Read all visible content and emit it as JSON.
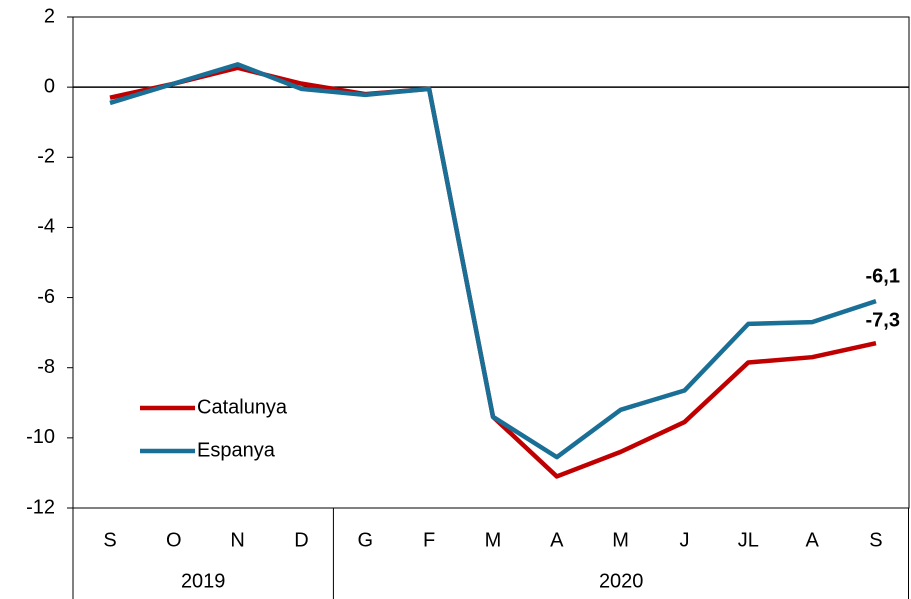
{
  "chart_data": {
    "type": "line",
    "categories": [
      "S",
      "O",
      "N",
      "D",
      "G",
      "F",
      "M",
      "A",
      "M",
      "J",
      "JL",
      "A",
      "S"
    ],
    "year_groups": [
      {
        "label": "2019",
        "start": 0,
        "end": 3
      },
      {
        "label": "2020",
        "start": 4,
        "end": 12
      }
    ],
    "series": [
      {
        "name": "Catalunya",
        "color": "#c00000",
        "values": [
          -0.3,
          0.1,
          0.55,
          0.1,
          -0.2,
          -0.05,
          -9.4,
          -11.1,
          -10.4,
          -9.55,
          -7.85,
          -7.7,
          -7.3
        ],
        "value_labels": [
          null,
          null,
          null,
          null,
          null,
          null,
          null,
          null,
          null,
          null,
          null,
          null,
          "-7,3"
        ]
      },
      {
        "name": "Espanya",
        "color": "#1a6f96",
        "values": [
          -0.45,
          0.1,
          0.65,
          -0.05,
          -0.22,
          -0.05,
          -9.4,
          -10.55,
          -9.2,
          -8.65,
          -6.75,
          -6.7,
          -6.1
        ],
        "value_labels": [
          null,
          null,
          null,
          null,
          null,
          null,
          null,
          null,
          null,
          null,
          null,
          null,
          "-6,1"
        ]
      }
    ],
    "ylim": [
      -12,
      2
    ],
    "yticks": [
      -12,
      -10,
      -8,
      -6,
      -4,
      -2,
      0,
      2
    ],
    "zero_line": true,
    "legend": "lower left"
  }
}
